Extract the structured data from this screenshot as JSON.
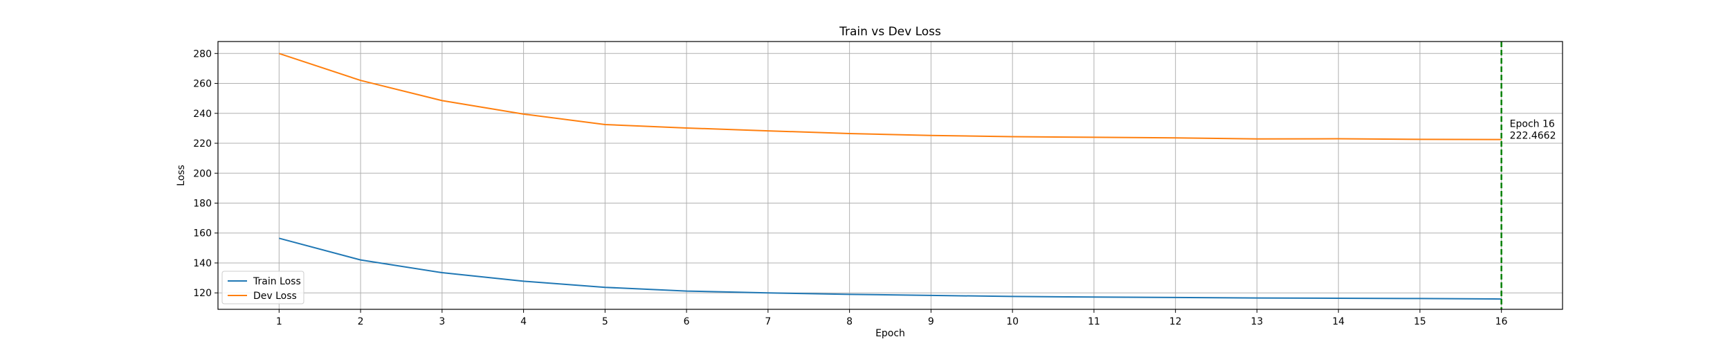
{
  "chart_data": {
    "type": "line",
    "title": "Train vs Dev Loss",
    "xlabel": "Epoch",
    "ylabel": "Loss",
    "x": [
      1,
      2,
      3,
      4,
      5,
      6,
      7,
      8,
      9,
      10,
      11,
      12,
      13,
      14,
      15,
      16
    ],
    "xlim": [
      0.25,
      16.75
    ],
    "ylim": [
      109,
      288
    ],
    "xticks": [
      1,
      2,
      3,
      4,
      5,
      6,
      7,
      8,
      9,
      10,
      11,
      12,
      13,
      14,
      15,
      16
    ],
    "yticks": [
      120,
      140,
      160,
      180,
      200,
      220,
      240,
      260,
      280
    ],
    "grid": true,
    "legend_position": "lower-left",
    "series": [
      {
        "name": "Train Loss",
        "color": "#1f77b4",
        "values": [
          156.5,
          142.0,
          133.5,
          127.8,
          123.7,
          121.2,
          120.0,
          119.0,
          118.3,
          117.6,
          117.2,
          116.9,
          116.6,
          116.4,
          116.2,
          115.9
        ]
      },
      {
        "name": "Dev Loss",
        "color": "#ff7f0e",
        "values": [
          280.0,
          262.0,
          248.5,
          239.5,
          232.5,
          230.2,
          228.3,
          226.5,
          225.2,
          224.4,
          224.0,
          223.6,
          222.9,
          223.0,
          222.6,
          222.4662
        ]
      }
    ],
    "marker_line": {
      "x": 16,
      "color": "#008000",
      "style": "dashed"
    },
    "annotation": {
      "x": 16,
      "y": 222.4662,
      "line1": "Epoch 16",
      "line2": "222.4662"
    }
  }
}
